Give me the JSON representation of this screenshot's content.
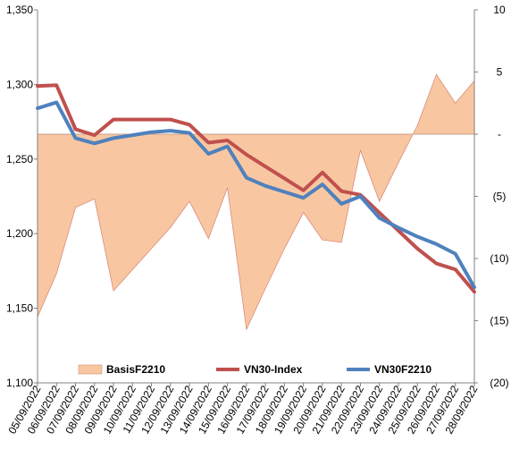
{
  "chart_data": {
    "type": "line",
    "title": "",
    "categories": [
      "05/09/2022",
      "06/09/2022",
      "07/09/2022",
      "08/09/2022",
      "09/09/2022",
      "10/09/2022",
      "11/09/2022",
      "12/09/2022",
      "13/09/2022",
      "14/09/2022",
      "15/09/2022",
      "16/09/2022",
      "17/09/2022",
      "18/09/2022",
      "19/09/2022",
      "20/09/2022",
      "21/09/2022",
      "22/09/2022",
      "23/09/2022",
      "24/09/2022",
      "25/09/2022",
      "26/09/2022",
      "27/09/2022",
      "28/09/2022"
    ],
    "left_axis": {
      "ylim": [
        1100,
        1350
      ],
      "ticks": [
        "1,100",
        "1,150",
        "1,200",
        "1,250",
        "1,300",
        "1,350"
      ]
    },
    "right_axis": {
      "ylim": [
        -20,
        10
      ],
      "ticks": [
        "(20)",
        "(15)",
        "(10)",
        "(5)",
        "-",
        "5",
        "10"
      ]
    },
    "series": [
      {
        "name": "BasisF2210",
        "kind": "area",
        "axis": "right",
        "color": "#f8c7a2",
        "edge_color": "#d88c7a",
        "x": [
          0,
          1,
          2,
          3,
          4,
          5,
          6,
          7,
          8,
          9,
          10,
          11,
          12,
          13,
          14,
          15,
          16,
          17,
          18,
          19,
          20,
          21,
          22,
          23
        ],
        "values": [
          -14.7,
          -11.2,
          -5.9,
          -5.2,
          -12.6,
          -10.9,
          -9.2,
          -7.5,
          -5.4,
          -8.4,
          -4.3,
          -15.7,
          -12.4,
          -9.2,
          -6.3,
          -8.5,
          -8.7,
          -1.3,
          -5.4,
          -2.3,
          0.7,
          4.8,
          2.5,
          4.3
        ]
      },
      {
        "name": "VN30-Index",
        "kind": "line",
        "axis": "left",
        "color": "#c0504d",
        "x": [
          0,
          1,
          2,
          3,
          4,
          5,
          6,
          7,
          8,
          9,
          10,
          11,
          12,
          13,
          14,
          15,
          16,
          17,
          18,
          19,
          20,
          21,
          22,
          23
        ],
        "values": [
          1299,
          1299.5,
          1270,
          1266,
          1276.5,
          1276.5,
          1276.5,
          1276.5,
          1273,
          1261,
          1262.5,
          1253,
          1245,
          1237,
          1229,
          1241,
          1228.5,
          1226,
          1214,
          1202,
          1190,
          1180,
          1176,
          1161
        ]
      },
      {
        "name": "VN30F2210",
        "kind": "line",
        "axis": "left",
        "color": "#4f81bd",
        "x": [
          0,
          1,
          2,
          3,
          4,
          5,
          6,
          7,
          8,
          9,
          10,
          11,
          12,
          13,
          14,
          15,
          16,
          17,
          18,
          19,
          20,
          21,
          22,
          23
        ],
        "values": [
          1284,
          1288,
          1264,
          1260.5,
          1264,
          1266,
          1268,
          1269,
          1267.5,
          1253.5,
          1258.5,
          1237.5,
          1232,
          1228,
          1224,
          1233,
          1220,
          1225,
          1210.5,
          1204,
          1198,
          1193,
          1186.5,
          1164
        ]
      }
    ],
    "legend": {
      "placement": "bottom",
      "items": [
        {
          "label": "BasisF2210",
          "marker": "area-swatch",
          "color": "#f8c7a2"
        },
        {
          "label": "VN30-Index",
          "marker": "line",
          "color": "#c0504d"
        },
        {
          "label": "VN30F2210",
          "marker": "line",
          "color": "#4f81bd"
        }
      ]
    },
    "grid": false,
    "reference_line": {
      "axis": "right",
      "value": 0,
      "color": "#c9a08a"
    }
  }
}
